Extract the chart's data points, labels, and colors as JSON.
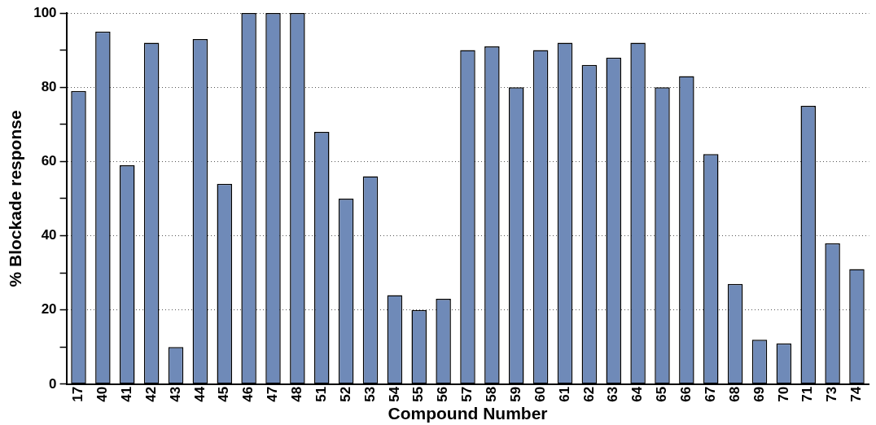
{
  "chart_data": {
    "type": "bar",
    "xlabel": "Compound Number",
    "ylabel": "% Blockade response",
    "categories": [
      "17",
      "40",
      "41",
      "42",
      "43",
      "44",
      "45",
      "46",
      "47",
      "48",
      "51",
      "52",
      "53",
      "54",
      "55",
      "56",
      "57",
      "58",
      "59",
      "60",
      "61",
      "62",
      "63",
      "64",
      "65",
      "66",
      "67",
      "68",
      "69",
      "70",
      "71",
      "73",
      "74"
    ],
    "values": [
      79,
      95,
      59,
      92,
      10,
      93,
      54,
      100,
      100,
      100,
      68,
      50,
      56,
      24,
      20,
      23,
      90,
      91,
      80,
      90,
      92,
      86,
      88,
      92,
      80,
      83,
      62,
      27,
      12,
      11,
      75,
      38,
      31
    ],
    "color": "#6f8ab8",
    "ylim": [
      0,
      100
    ],
    "yticks": [
      0,
      {
        "value": 10,
        "label": null
      },
      20,
      {
        "value": 30,
        "label": null
      },
      40,
      {
        "value": 50,
        "label": null
      },
      60,
      {
        "value": 70,
        "label": null
      },
      80,
      {
        "value": 90,
        "label": null
      },
      100
    ],
    "grid": "y"
  }
}
